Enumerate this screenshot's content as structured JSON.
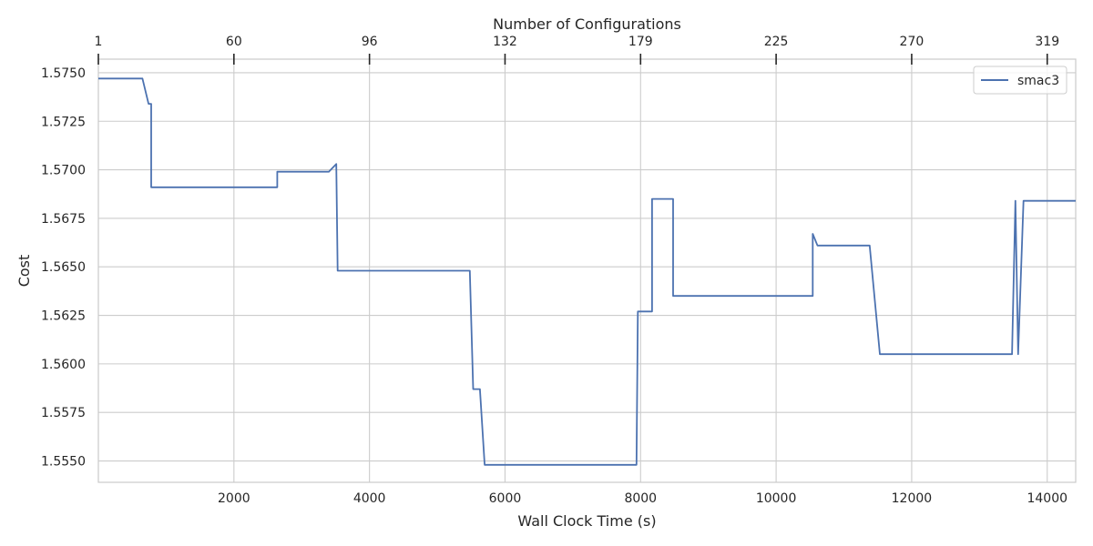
{
  "chart_data": {
    "type": "line",
    "xlabel": "Wall Clock Time (s)",
    "ylabel": "Cost",
    "top_xlabel": "Number of Configurations",
    "xlim": [
      0,
      14420
    ],
    "ylim": [
      1.5539,
      1.5757
    ],
    "x_ticks": [
      2000,
      4000,
      6000,
      8000,
      10000,
      12000,
      14000
    ],
    "x_tick_labels": [
      "2000",
      "4000",
      "6000",
      "8000",
      "10000",
      "12000",
      "14000"
    ],
    "y_ticks": [
      1.555,
      1.5575,
      1.56,
      1.5625,
      1.565,
      1.5675,
      1.57,
      1.5725,
      1.575
    ],
    "y_tick_labels": [
      "1.5550",
      "1.5575",
      "1.5600",
      "1.5625",
      "1.5650",
      "1.5675",
      "1.5700",
      "1.5725",
      "1.5750"
    ],
    "top_ticks": [
      {
        "label": "1",
        "x": 0
      },
      {
        "label": "60",
        "x": 2000
      },
      {
        "label": "96",
        "x": 4000
      },
      {
        "label": "132",
        "x": 6000
      },
      {
        "label": "179",
        "x": 8000
      },
      {
        "label": "225",
        "x": 10000
      },
      {
        "label": "270",
        "x": 12000
      },
      {
        "label": "319",
        "x": 14000
      }
    ],
    "grid": true,
    "legend": {
      "position": "top-right"
    },
    "series": [
      {
        "name": "smac3",
        "color": "#4c72b0",
        "x": [
          0,
          240,
          240,
          650,
          650,
          740,
          740,
          780,
          780,
          2640,
          2640,
          3400,
          3510,
          3530,
          3530,
          5480,
          5530,
          5530,
          5630,
          5700,
          5700,
          7940,
          7960,
          7960,
          8170,
          8170,
          8440,
          8480,
          8480,
          10540,
          10540,
          10610,
          10610,
          11380,
          11530,
          11530,
          13480,
          13530,
          13570,
          13650,
          13650,
          14420
        ],
        "values": [
          1.5747,
          1.5747,
          1.5747,
          1.5747,
          1.5747,
          1.5734,
          1.5734,
          1.5734,
          1.5691,
          1.5691,
          1.5699,
          1.5699,
          1.5703,
          1.5648,
          1.5648,
          1.5648,
          1.5587,
          1.5587,
          1.5587,
          1.5548,
          1.5548,
          1.5548,
          1.5627,
          1.5627,
          1.5627,
          1.5685,
          1.5685,
          1.5685,
          1.5635,
          1.5635,
          1.5667,
          1.5661,
          1.5661,
          1.5661,
          1.5605,
          1.5605,
          1.5605,
          1.5684,
          1.5605,
          1.5684,
          1.5684,
          1.5684
        ]
      }
    ]
  }
}
